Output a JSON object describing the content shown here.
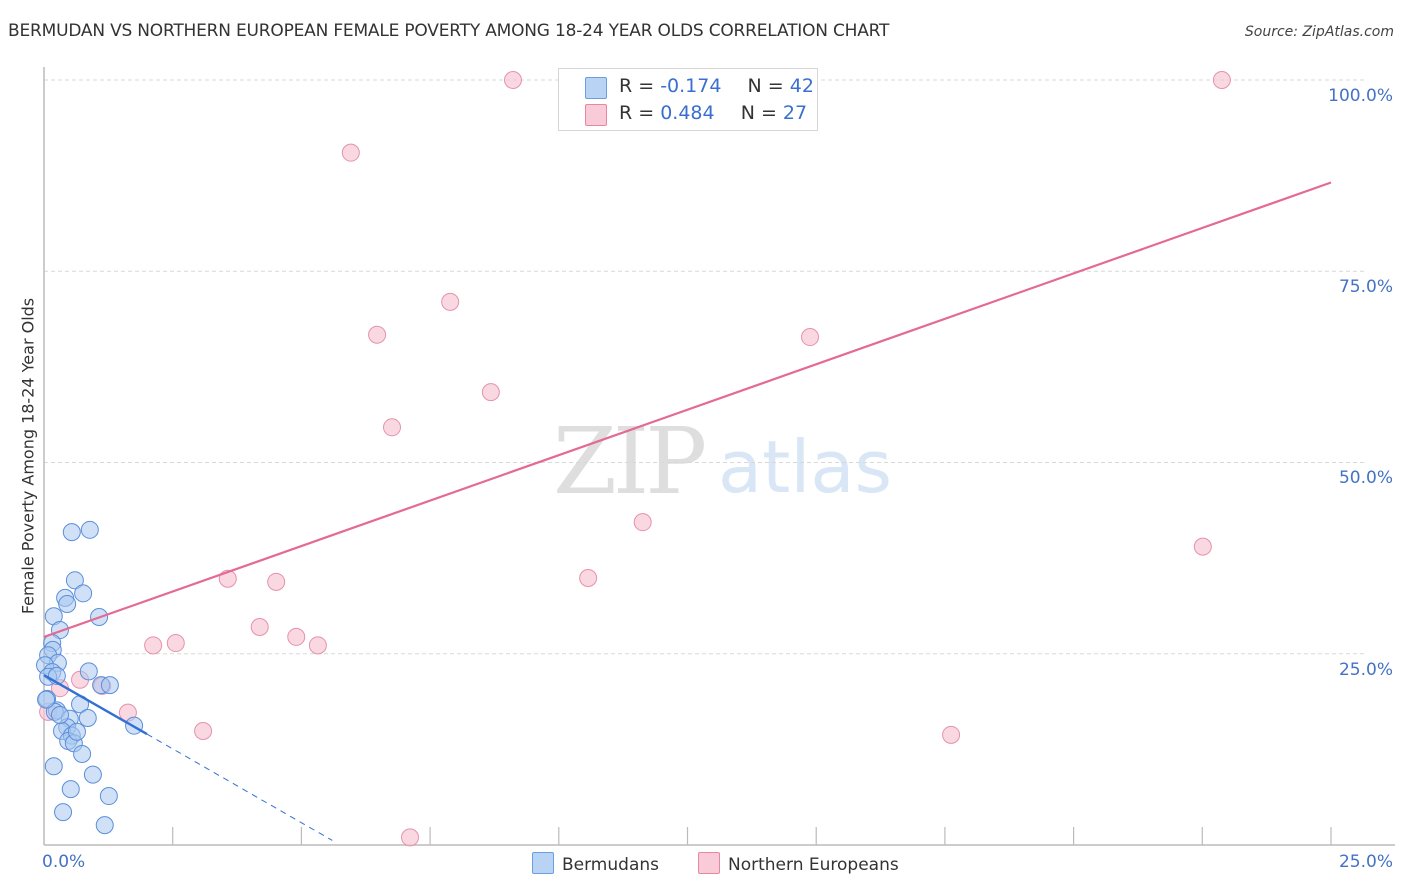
{
  "header": {
    "title": "BERMUDAN VS NORTHERN EUROPEAN FEMALE POVERTY AMONG 18-24 YEAR OLDS CORRELATION CHART",
    "source": "Source: ZipAtlas.com"
  },
  "watermark": {
    "zip": "ZIP",
    "atlas": "atlas"
  },
  "legend": {
    "series": [
      {
        "name": "Bermudans",
        "r_label": "R = ",
        "r_value": "-0.174",
        "n_label": "N = ",
        "n_value": "42",
        "color": "#a9c8f0",
        "edge": "#6a9ee0"
      },
      {
        "name": "Northern Europeans",
        "r_label": "R = ",
        "r_value": " 0.484",
        "n_label": "N = ",
        "n_value": "27",
        "color": "#f8c3d3",
        "edge": "#e8889f"
      }
    ]
  },
  "axes": {
    "ylabel": "Female Poverty Among 18-24 Year Olds",
    "yticks": [
      "100.0%",
      "75.0%",
      "50.0%",
      "25.0%"
    ],
    "xticks": {
      "left": "0.0%",
      "right": "25.0%"
    }
  },
  "colors": {
    "blue_point_fill": "#a9c8f0",
    "blue_point_edge": "#5b8fd9",
    "pink_point_fill": "#f8c8d6",
    "pink_point_edge": "#e592ab",
    "blue_line": "#3370d4",
    "pink_line": "#e46a93",
    "tick_label": "#4472c4",
    "grid": "#d8d8d8"
  },
  "chart_data": {
    "type": "scatter",
    "title": "BERMUDAN VS NORTHERN EUROPEAN FEMALE POVERTY AMONG 18-24 YEAR OLDS CORRELATION CHART",
    "xlabel": "",
    "ylabel": "Female Poverty Among 18-24 Year Olds",
    "xlim": [
      0,
      25
    ],
    "ylim": [
      0,
      100
    ],
    "x_unit": "%",
    "y_unit": "%",
    "grid": true,
    "legend_position": "bottom",
    "series": [
      {
        "name": "Bermudans",
        "r": -0.174,
        "n": 42,
        "points": [
          [
            0.54,
            40.9
          ],
          [
            0.89,
            41.2
          ],
          [
            0.6,
            34.6
          ],
          [
            0.76,
            32.9
          ],
          [
            0.41,
            32.3
          ],
          [
            0.45,
            31.5
          ],
          [
            1.07,
            29.8
          ],
          [
            0.19,
            29.9
          ],
          [
            0.31,
            28.1
          ],
          [
            0.16,
            26.4
          ],
          [
            0.17,
            25.5
          ],
          [
            0.08,
            24.8
          ],
          [
            0.27,
            23.8
          ],
          [
            0.02,
            23.5
          ],
          [
            0.87,
            22.7
          ],
          [
            0.16,
            22.6
          ],
          [
            0.08,
            22.0
          ],
          [
            0.25,
            22.1
          ],
          [
            1.11,
            20.9
          ],
          [
            1.28,
            20.9
          ],
          [
            0.06,
            19.1
          ],
          [
            0.7,
            18.4
          ],
          [
            0.25,
            17.6
          ],
          [
            0.21,
            17.4
          ],
          [
            0.85,
            16.6
          ],
          [
            0.5,
            16.5
          ],
          [
            0.45,
            15.4
          ],
          [
            0.35,
            14.9
          ],
          [
            1.75,
            15.6
          ],
          [
            0.54,
            14.3
          ],
          [
            0.47,
            13.6
          ],
          [
            0.58,
            13.3
          ],
          [
            0.74,
            11.9
          ],
          [
            0.19,
            10.3
          ],
          [
            0.95,
            9.2
          ],
          [
            0.52,
            7.3
          ],
          [
            1.26,
            6.4
          ],
          [
            0.37,
            4.3
          ],
          [
            1.18,
            2.6
          ],
          [
            0.04,
            19.0
          ],
          [
            0.31,
            17.0
          ],
          [
            0.64,
            14.8
          ]
        ],
        "trend": {
          "solid": [
            [
              0.0,
              22.2
            ],
            [
              2.0,
              14.5
            ]
          ],
          "dashed": [
            [
              2.0,
              14.5
            ],
            [
              5.6,
              0.6
            ]
          ]
        }
      },
      {
        "name": "Northern Europeans",
        "r": 0.484,
        "n": 27,
        "points": [
          [
            9.11,
            100.0
          ],
          [
            22.88,
            100.0
          ],
          [
            12.28,
            100.0
          ],
          [
            5.96,
            90.5
          ],
          [
            7.89,
            71.0
          ],
          [
            6.47,
            66.7
          ],
          [
            14.88,
            66.4
          ],
          [
            8.68,
            59.2
          ],
          [
            6.76,
            54.6
          ],
          [
            11.63,
            42.2
          ],
          [
            22.51,
            39.0
          ],
          [
            3.57,
            34.8
          ],
          [
            4.51,
            34.4
          ],
          [
            10.57,
            34.9
          ],
          [
            4.19,
            28.5
          ],
          [
            4.9,
            27.2
          ],
          [
            5.32,
            26.1
          ],
          [
            2.12,
            26.1
          ],
          [
            2.56,
            26.4
          ],
          [
            0.7,
            21.6
          ],
          [
            0.31,
            20.5
          ],
          [
            1.13,
            20.8
          ],
          [
            0.08,
            17.4
          ],
          [
            1.63,
            17.3
          ],
          [
            3.09,
            14.9
          ],
          [
            17.62,
            14.4
          ],
          [
            7.11,
            1.0
          ]
        ],
        "trend": {
          "solid": [
            [
              0.0,
              27.2
            ],
            [
              25.0,
              86.6
            ]
          ]
        }
      }
    ]
  }
}
